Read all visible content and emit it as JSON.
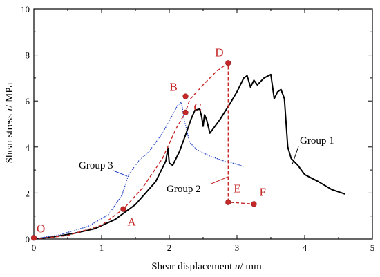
{
  "chart_data": {
    "type": "line",
    "xlabel_parts": [
      "Shear displacement ",
      "u",
      "/ mm"
    ],
    "ylabel_parts": [
      "Shear stress ",
      "τ",
      "/ MPa"
    ],
    "xlim": [
      0,
      5
    ],
    "ylim": [
      0,
      10
    ],
    "xticks": [
      0,
      1,
      2,
      3,
      4,
      5
    ],
    "yticks": [
      0,
      2,
      4,
      6,
      8,
      10
    ],
    "grid": false,
    "series": [
      {
        "name": "Group 1",
        "color": "#000000",
        "style": "solid",
        "points": [
          [
            0,
            0
          ],
          [
            0.3,
            0.1
          ],
          [
            0.6,
            0.25
          ],
          [
            0.9,
            0.45
          ],
          [
            1.2,
            0.85
          ],
          [
            1.5,
            1.5
          ],
          [
            1.8,
            2.5
          ],
          [
            1.95,
            3.4
          ],
          [
            1.98,
            3.95
          ],
          [
            2.0,
            3.3
          ],
          [
            2.05,
            3.2
          ],
          [
            2.15,
            3.8
          ],
          [
            2.25,
            4.6
          ],
          [
            2.32,
            5.2
          ],
          [
            2.38,
            5.6
          ],
          [
            2.45,
            5.65
          ],
          [
            2.48,
            5.3
          ],
          [
            2.5,
            4.9
          ],
          [
            2.52,
            5.4
          ],
          [
            2.55,
            5.2
          ],
          [
            2.6,
            4.6
          ],
          [
            2.75,
            5.2
          ],
          [
            2.9,
            5.9
          ],
          [
            3.0,
            6.4
          ],
          [
            3.1,
            7.0
          ],
          [
            3.15,
            7.1
          ],
          [
            3.2,
            6.6
          ],
          [
            3.25,
            6.9
          ],
          [
            3.3,
            6.7
          ],
          [
            3.4,
            7.0
          ],
          [
            3.5,
            7.15
          ],
          [
            3.55,
            6.1
          ],
          [
            3.6,
            6.4
          ],
          [
            3.65,
            6.5
          ],
          [
            3.7,
            6.1
          ],
          [
            3.75,
            4.0
          ],
          [
            3.8,
            3.5
          ],
          [
            3.9,
            3.2
          ],
          [
            4.0,
            2.8
          ],
          [
            4.2,
            2.5
          ],
          [
            4.4,
            2.15
          ],
          [
            4.6,
            1.95
          ]
        ]
      },
      {
        "name": "Group 2",
        "color": "#c62828",
        "style": "dashed",
        "points": [
          [
            0,
            0
          ],
          [
            0.5,
            0.15
          ],
          [
            1.0,
            0.6
          ],
          [
            1.32,
            1.3
          ],
          [
            1.6,
            2.2
          ],
          [
            1.9,
            3.5
          ],
          [
            2.1,
            4.8
          ],
          [
            2.2,
            5.3
          ],
          [
            2.24,
            5.5
          ],
          [
            2.3,
            6.05
          ],
          [
            2.5,
            6.7
          ],
          [
            2.7,
            7.3
          ],
          [
            2.87,
            7.65
          ],
          [
            2.87,
            1.6
          ],
          [
            3.25,
            1.52
          ]
        ]
      },
      {
        "name": "Group 3",
        "color": "#1f3fc4",
        "style": "dotted",
        "points": [
          [
            0,
            0
          ],
          [
            0.4,
            0.2
          ],
          [
            0.8,
            0.55
          ],
          [
            1.1,
            1.05
          ],
          [
            1.3,
            1.9
          ],
          [
            1.4,
            2.8
          ],
          [
            1.55,
            3.4
          ],
          [
            1.7,
            3.8
          ],
          [
            1.9,
            4.6
          ],
          [
            2.05,
            5.4
          ],
          [
            2.12,
            5.8
          ],
          [
            2.18,
            5.95
          ],
          [
            2.22,
            5.2
          ],
          [
            2.3,
            4.2
          ],
          [
            2.4,
            3.9
          ],
          [
            2.6,
            3.6
          ],
          [
            2.8,
            3.4
          ],
          [
            3.0,
            3.25
          ],
          [
            3.1,
            3.15
          ]
        ]
      }
    ],
    "key_points": [
      {
        "label": "O",
        "x": 0,
        "y": 0.05
      },
      {
        "label": "A",
        "x": 1.32,
        "y": 1.3
      },
      {
        "label": "B",
        "x": 2.24,
        "y": 6.2
      },
      {
        "label": "C",
        "x": 2.24,
        "y": 5.5
      },
      {
        "label": "D",
        "x": 2.87,
        "y": 7.65
      },
      {
        "label": "E",
        "x": 2.87,
        "y": 1.6
      },
      {
        "label": "F",
        "x": 3.25,
        "y": 1.52
      }
    ],
    "point_color": "#c62828"
  }
}
